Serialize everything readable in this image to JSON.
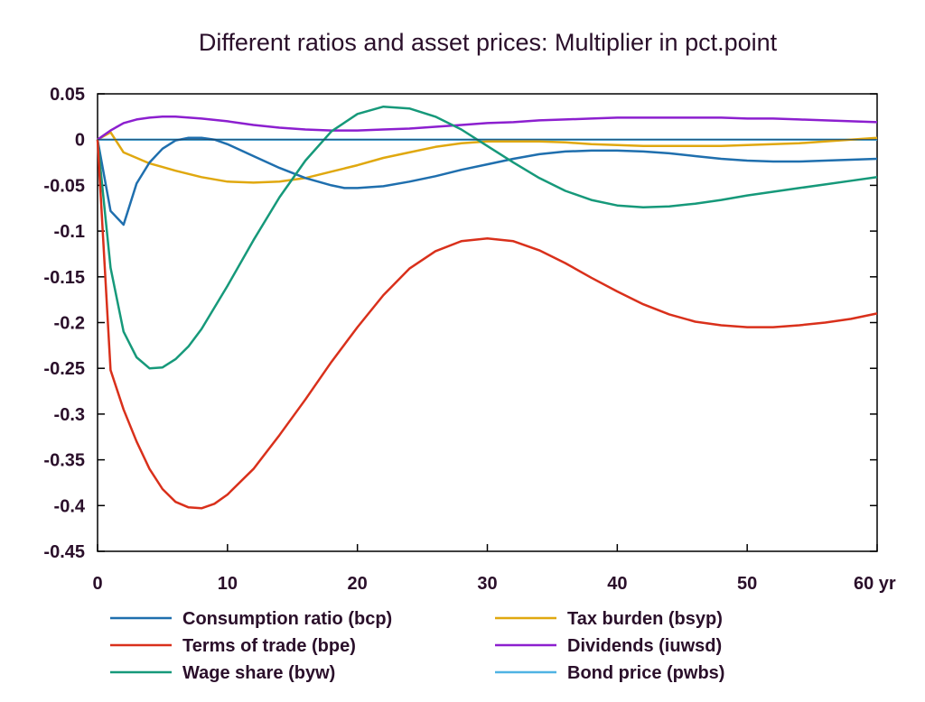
{
  "chart_data": {
    "type": "line",
    "title": "Different ratios and asset prices: Multiplier in pct.point",
    "xlabel": "",
    "ylabel": "",
    "xlim": [
      0,
      60
    ],
    "ylim": [
      -0.45,
      0.05
    ],
    "x_ticks": [
      0,
      10,
      20,
      30,
      40,
      50,
      60
    ],
    "x_tick_labels": [
      "0",
      "10",
      "20",
      "30",
      "40",
      "50",
      "60 yr"
    ],
    "y_ticks": [
      0.05,
      0,
      -0.05,
      -0.1,
      -0.15,
      -0.2,
      -0.25,
      -0.3,
      -0.35,
      -0.4,
      -0.45
    ],
    "y_tick_labels": [
      "0.05",
      "0",
      "-0.05",
      "-0.1",
      "-0.15",
      "-0.2",
      "-0.25",
      "-0.3",
      "-0.35",
      "-0.4",
      "-0.45"
    ],
    "grid": false,
    "legend_position": "bottom",
    "series": [
      {
        "name": "Consumption ratio (bcp)",
        "color": "#1f6fae",
        "x": [
          0,
          1,
          2,
          3,
          4,
          5,
          6,
          7,
          8,
          9,
          10,
          12,
          14,
          16,
          18,
          19,
          20,
          22,
          24,
          26,
          28,
          30,
          32,
          34,
          36,
          38,
          40,
          42,
          44,
          46,
          48,
          50,
          52,
          54,
          56,
          58,
          60
        ],
        "values": [
          0,
          -0.078,
          -0.093,
          -0.048,
          -0.025,
          -0.01,
          -0.001,
          0.002,
          0.002,
          0.0,
          -0.005,
          -0.018,
          -0.031,
          -0.042,
          -0.05,
          -0.053,
          -0.053,
          -0.051,
          -0.046,
          -0.04,
          -0.033,
          -0.027,
          -0.021,
          -0.016,
          -0.013,
          -0.012,
          -0.012,
          -0.013,
          -0.015,
          -0.018,
          -0.021,
          -0.023,
          -0.024,
          -0.024,
          -0.023,
          -0.022,
          -0.021
        ]
      },
      {
        "name": "Terms of trade (bpe)",
        "color": "#d9301b",
        "x": [
          0,
          1,
          2,
          3,
          4,
          5,
          6,
          7,
          8,
          9,
          10,
          12,
          14,
          16,
          18,
          20,
          22,
          24,
          26,
          28,
          30,
          32,
          34,
          36,
          38,
          40,
          42,
          44,
          46,
          48,
          50,
          52,
          54,
          56,
          58,
          60
        ],
        "values": [
          0,
          -0.252,
          -0.295,
          -0.33,
          -0.36,
          -0.382,
          -0.396,
          -0.402,
          -0.403,
          -0.398,
          -0.388,
          -0.36,
          -0.323,
          -0.284,
          -0.243,
          -0.205,
          -0.17,
          -0.141,
          -0.122,
          -0.111,
          -0.108,
          -0.111,
          -0.121,
          -0.135,
          -0.151,
          -0.166,
          -0.18,
          -0.191,
          -0.199,
          -0.203,
          -0.205,
          -0.205,
          -0.203,
          -0.2,
          -0.196,
          -0.19
        ]
      },
      {
        "name": "Wage share (byw)",
        "color": "#16997a",
        "x": [
          0,
          1,
          2,
          3,
          4,
          5,
          6,
          7,
          8,
          10,
          12,
          14,
          16,
          18,
          20,
          22,
          24,
          26,
          28,
          30,
          32,
          34,
          36,
          38,
          40,
          42,
          44,
          46,
          48,
          50,
          52,
          54,
          56,
          58,
          60
        ],
        "values": [
          0,
          -0.14,
          -0.21,
          -0.238,
          -0.25,
          -0.249,
          -0.24,
          -0.226,
          -0.207,
          -0.16,
          -0.11,
          -0.063,
          -0.023,
          0.009,
          0.028,
          0.036,
          0.034,
          0.025,
          0.011,
          -0.007,
          -0.025,
          -0.042,
          -0.056,
          -0.066,
          -0.072,
          -0.074,
          -0.073,
          -0.07,
          -0.066,
          -0.061,
          -0.057,
          -0.053,
          -0.049,
          -0.045,
          -0.041
        ]
      },
      {
        "name": "Tax burden (bsyp)",
        "color": "#e0a80f",
        "x": [
          0,
          1,
          2,
          3,
          4,
          5,
          6,
          8,
          10,
          12,
          14,
          16,
          18,
          20,
          22,
          24,
          26,
          28,
          30,
          32,
          34,
          36,
          38,
          40,
          42,
          44,
          46,
          48,
          50,
          52,
          54,
          56,
          58,
          60
        ],
        "values": [
          0,
          0.008,
          -0.014,
          -0.02,
          -0.026,
          -0.03,
          -0.034,
          -0.041,
          -0.046,
          -0.047,
          -0.046,
          -0.042,
          -0.035,
          -0.028,
          -0.02,
          -0.014,
          -0.008,
          -0.004,
          -0.002,
          -0.002,
          -0.002,
          -0.003,
          -0.005,
          -0.006,
          -0.007,
          -0.007,
          -0.007,
          -0.007,
          -0.006,
          -0.005,
          -0.004,
          -0.002,
          0.0,
          0.002
        ]
      },
      {
        "name": "Dividends (iuwsd)",
        "color": "#8c1fcf",
        "x": [
          0,
          1,
          2,
          3,
          4,
          5,
          6,
          8,
          10,
          12,
          14,
          16,
          18,
          20,
          22,
          24,
          26,
          28,
          30,
          32,
          34,
          36,
          38,
          40,
          42,
          44,
          46,
          48,
          50,
          52,
          54,
          56,
          58,
          60
        ],
        "values": [
          0,
          0.01,
          0.018,
          0.022,
          0.024,
          0.025,
          0.025,
          0.023,
          0.02,
          0.016,
          0.013,
          0.011,
          0.01,
          0.01,
          0.011,
          0.012,
          0.014,
          0.016,
          0.018,
          0.019,
          0.021,
          0.022,
          0.023,
          0.024,
          0.024,
          0.024,
          0.024,
          0.024,
          0.023,
          0.023,
          0.022,
          0.021,
          0.02,
          0.019
        ]
      },
      {
        "name": "Bond price (pwbs)",
        "color": "#4fb3e3",
        "x": [
          0,
          60
        ],
        "values": [
          0,
          0
        ]
      }
    ]
  }
}
